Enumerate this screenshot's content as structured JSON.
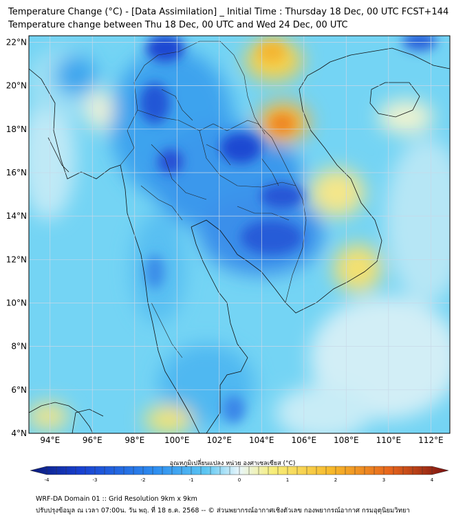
{
  "title": {
    "line1": "Temperature Change (°C) - [Data Assimilation] _ Initial Time : Thursday 18 Dec, 00 UTC FCST+144",
    "line2": "Temperature change between Thu 18 Dec, 00 UTC and Wed 24 Dec, 00 UTC"
  },
  "map": {
    "lat_labels": [
      "22°N",
      "20°N",
      "18°N",
      "16°N",
      "14°N",
      "12°N",
      "10°N",
      "8°N",
      "6°N",
      "4°N"
    ],
    "lon_labels": [
      "94°E",
      "96°E",
      "98°E",
      "100°E",
      "102°E",
      "104°E",
      "106°E",
      "108°E",
      "110°E",
      "112°E"
    ],
    "lat_range": [
      4,
      22.3
    ],
    "lon_range": [
      93.0,
      112.9
    ],
    "gridlines": true
  },
  "colorbar": {
    "title": "อุณหภูมิเปลี่ยนแปลง หน่วย องศาเซลเซียส (°C)",
    "ticks": [
      "-4",
      "-3",
      "-2",
      "-1",
      "0",
      "1",
      "2",
      "3",
      "4"
    ],
    "range": [
      -4,
      4
    ],
    "colors": {
      "min": "#0a1a7a",
      "strong_cool": "#1840d0",
      "cool": "#2e8ef0",
      "mild_cool": "#5cc6f2",
      "neutral": "#e8f6fb",
      "mild_warm": "#f7ee7a",
      "warm": "#f7b92a",
      "hot": "#e7651c",
      "max": "#7a1010"
    }
  },
  "footer": {
    "line1": "WRF-DA Domain 01 :: Grid Resolution 9km x 9km",
    "line2": "ปรับปรุงข้อมูล ณ เวลา 07:00น. วัน พฤ. ที่ 18 ธ.ค. 2568 -- © ส่วนพยากรณ์อากาศเชิงตัวเลข กองพยากรณ์อากาศ กรมอุตุนิยมวิทยา"
  }
}
